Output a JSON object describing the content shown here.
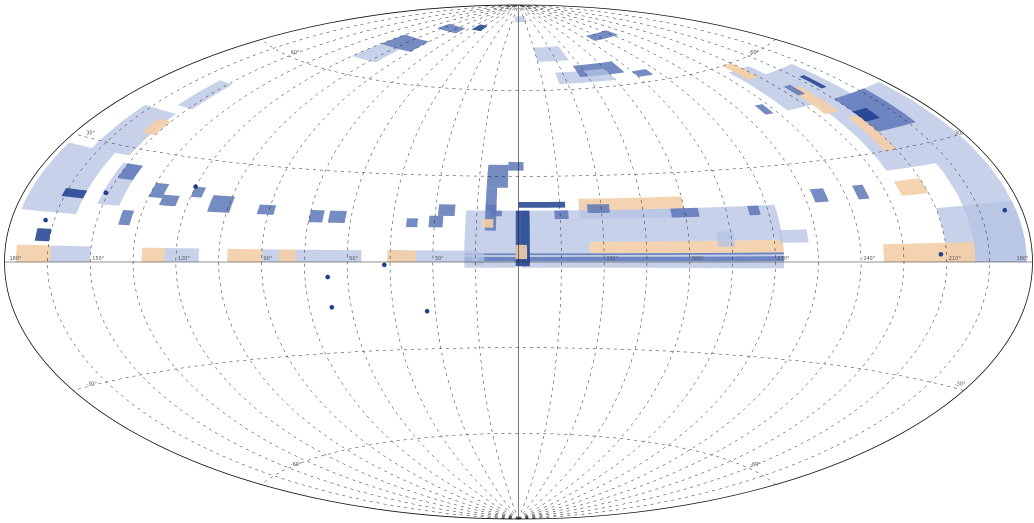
{
  "map": {
    "projection": "Aitoff",
    "colors": {
      "dark_blue": "#1c3f8e",
      "medium_blue": "#5d78b8",
      "light_blue": "#b4c3e3",
      "orange": "#f3cea7",
      "boundary": "#111111",
      "grid": "#222222",
      "background": "#ffffff"
    },
    "meridian_lon_deg": [
      -165,
      -150,
      -135,
      -120,
      -105,
      -90,
      -75,
      -60,
      -45,
      -30,
      -15,
      15,
      30,
      45,
      60,
      75,
      90,
      105,
      120,
      135,
      150,
      165
    ],
    "parallel_lat_deg": [
      -60,
      -30,
      0,
      30,
      60
    ],
    "equator_labels": [
      {
        "lon": 180,
        "text": "180°"
      },
      {
        "lon": 150,
        "text": "150°"
      },
      {
        "lon": 120,
        "text": "120°"
      },
      {
        "lon": 90,
        "text": "90°"
      },
      {
        "lon": 60,
        "text": "60°"
      },
      {
        "lon": 30,
        "text": "30°"
      },
      {
        "lon": -30,
        "text": "330°"
      },
      {
        "lon": -60,
        "text": "300°"
      },
      {
        "lon": -90,
        "text": "270°"
      },
      {
        "lon": -120,
        "text": "240°"
      },
      {
        "lon": -150,
        "text": "210°"
      },
      {
        "lon": -180,
        "text": "180°"
      }
    ],
    "parallel_labels": [
      {
        "lon": -150,
        "lat": 60,
        "text": "60°"
      },
      {
        "lon": 150,
        "lat": 60,
        "text": "60°"
      },
      {
        "lon": -175,
        "lat": 30,
        "text": "30°"
      },
      {
        "lon": 175,
        "lat": 30,
        "text": "30°"
      },
      {
        "lon": -175,
        "lat": -30,
        "text": "-30°"
      },
      {
        "lon": 175,
        "lat": -30,
        "text": "-30°"
      },
      {
        "lon": -150,
        "lat": -60,
        "text": "-60°"
      },
      {
        "lon": 150,
        "lat": -60,
        "text": "-60°"
      }
    ],
    "coverage_regions": [
      {
        "c": "orange",
        "lon": [
          -93,
          -25
        ],
        "lat": [
          3,
          7
        ]
      },
      {
        "c": "light_blue",
        "lon": [
          -93,
          -25
        ],
        "lat": [
          -2,
          3
        ]
      },
      {
        "c": "light_blue",
        "lon": [
          -93,
          -25
        ],
        "lat": [
          7,
          18
        ]
      },
      {
        "c": "light_blue",
        "lon": [
          -25,
          -1
        ],
        "lat": [
          -2,
          18
        ]
      },
      {
        "c": "light_blue",
        "lon": [
          1,
          19
        ],
        "lat": [
          -2,
          18
        ]
      },
      {
        "c": "medium_blue",
        "lon": [
          -93,
          19
        ],
        "lat": [
          0.3,
          1.8
        ]
      },
      {
        "c": "medium_blue",
        "lon": [
          -93,
          19
        ],
        "lat": [
          2.4,
          3
        ]
      },
      {
        "c": "dark_blue",
        "lon": [
          -4,
          1
        ],
        "lat": [
          -1.5,
          18
        ]
      },
      {
        "c": "orange",
        "lon": [
          -3,
          1
        ],
        "lat": [
          1,
          6
        ]
      },
      {
        "c": "dark_blue",
        "lon": [
          -17,
          0
        ],
        "lat": [
          19,
          21
        ]
      },
      {
        "c": "medium_blue",
        "lon": [
          -2,
          4
        ],
        "lat": [
          32,
          35
        ]
      },
      {
        "c": "medium_blue",
        "lon": [
          4,
          12
        ],
        "lat": [
          26,
          34
        ]
      },
      {
        "c": "medium_blue",
        "lon": [
          8,
          12
        ],
        "lat": [
          18,
          26
        ]
      },
      {
        "c": "medium_blue",
        "lon": [
          8,
          12
        ],
        "lat": [
          11,
          20
        ]
      },
      {
        "c": "medium_blue",
        "lon": [
          6,
          10
        ],
        "lat": [
          16,
          18
        ]
      },
      {
        "c": "orange",
        "lon": [
          9,
          13
        ],
        "lat": [
          12,
          15
        ]
      },
      {
        "c": "light_blue",
        "lon": [
          12,
          16
        ],
        "lat": [
          -1,
          3
        ]
      },
      {
        "c": "light_blue",
        "lon": [
          14,
          30
        ],
        "lat": [
          0,
          4
        ]
      },
      {
        "c": "light_blue",
        "lon": [
          30,
          45
        ],
        "lat": [
          0,
          4
        ]
      },
      {
        "c": "orange",
        "lon": [
          36,
          46
        ],
        "lat": [
          0,
          4
        ]
      },
      {
        "c": "light_blue",
        "lon": [
          55,
          90
        ],
        "lat": [
          0,
          4
        ]
      },
      {
        "c": "orange",
        "lon": [
          78,
          84
        ],
        "lat": [
          0,
          4
        ]
      },
      {
        "c": "orange",
        "lon": [
          90,
          102
        ],
        "lat": [
          0,
          4
        ]
      },
      {
        "c": "light_blue",
        "lon": [
          112,
          124
        ],
        "lat": [
          0,
          4
        ]
      },
      {
        "c": "orange",
        "lon": [
          124,
          132
        ],
        "lat": [
          0,
          4
        ]
      },
      {
        "c": "medium_blue",
        "lon": [
          23,
          29
        ],
        "lat": [
          16,
          20
        ]
      },
      {
        "c": "medium_blue",
        "lon": [
          27,
          32
        ],
        "lat": [
          12,
          16
        ]
      },
      {
        "c": "medium_blue",
        "lon": [
          36,
          40
        ],
        "lat": [
          12,
          15
        ]
      },
      {
        "c": "medium_blue",
        "lon": [
          62,
          68
        ],
        "lat": [
          13,
          17
        ]
      },
      {
        "c": "medium_blue",
        "lon": [
          70,
          75
        ],
        "lat": [
          13,
          17
        ]
      },
      {
        "c": "medium_blue",
        "lon": [
          88,
          94
        ],
        "lat": [
          15,
          18
        ]
      },
      {
        "c": "medium_blue",
        "lon": [
          104,
          112
        ],
        "lat": [
          15,
          20
        ]
      },
      {
        "c": "medium_blue",
        "lon": [
          116,
          120
        ],
        "lat": [
          19,
          22
        ]
      },
      {
        "c": "medium_blue",
        "lon": [
          124,
          130
        ],
        "lat": [
          16,
          19
        ]
      },
      {
        "c": "medium_blue",
        "lon": [
          138,
          142
        ],
        "lat": [
          10,
          14
        ]
      },
      {
        "c": "medium_blue",
        "lon": [
          130,
          135
        ],
        "lat": [
          18,
          22
        ]
      },
      {
        "c": "light_blue",
        "lon": [
          144,
          152
        ],
        "lat": [
          15,
          26
        ]
      },
      {
        "c": "medium_blue",
        "lon": [
          144,
          150
        ],
        "lat": [
          22,
          26
        ]
      },
      {
        "c": "light_blue",
        "lon": [
          152,
          168
        ],
        "lat": [
          28,
          40
        ]
      },
      {
        "c": "orange",
        "lon": [
          150,
          156
        ],
        "lat": [
          34,
          38
        ]
      },
      {
        "c": "light_blue",
        "lon": [
          148,
          156
        ],
        "lat": [
          42,
          50
        ]
      },
      {
        "c": "light_blue",
        "lon": [
          158,
          178
        ],
        "lat": [
          12,
          28
        ]
      },
      {
        "c": "orange",
        "lon": [
          164,
          176
        ],
        "lat": [
          0,
          4
        ]
      },
      {
        "c": "light_blue",
        "lon": [
          150,
          164
        ],
        "lat": [
          0,
          4
        ]
      },
      {
        "c": "dark_blue",
        "lon": [
          165,
          170
        ],
        "lat": [
          5,
          8
        ]
      },
      {
        "c": "dark_blue",
        "lon": [
          158,
          166
        ],
        "lat": [
          16,
          18
        ]
      },
      {
        "c": "light_blue",
        "lon": [
          -30,
          -22
        ],
        "lat": [
          18,
          21
        ]
      },
      {
        "c": "orange",
        "lon": [
          -60,
          -22
        ],
        "lat": [
          18,
          22
        ]
      },
      {
        "c": "light_blue",
        "lon": [
          -60,
          -22
        ],
        "lat": [
          15,
          18
        ]
      },
      {
        "c": "medium_blue",
        "lon": [
          -33,
          -25
        ],
        "lat": [
          17,
          20
        ]
      },
      {
        "c": "medium_blue",
        "lon": [
          -18,
          -13
        ],
        "lat": [
          15,
          18
        ]
      },
      {
        "c": "medium_blue",
        "lon": [
          -65,
          -55
        ],
        "lat": [
          15,
          18
        ]
      },
      {
        "c": "light_blue",
        "lon": [
          -76,
          -70
        ],
        "lat": [
          5,
          10
        ]
      },
      {
        "c": "medium_blue",
        "lon": [
          -87,
          -83
        ],
        "lat": [
          15,
          18
        ]
      },
      {
        "c": "medium_blue",
        "lon": [
          -113,
          -108
        ],
        "lat": [
          18,
          22
        ]
      },
      {
        "c": "light_blue",
        "lon": [
          -178,
          -160
        ],
        "lat": [
          0,
          45
        ]
      },
      {
        "c": "light_blue",
        "lon": [
          -160,
          -140
        ],
        "lat": [
          25,
          55
        ]
      },
      {
        "c": "light_blue",
        "lon": [
          -140,
          -125
        ],
        "lat": [
          45,
          58
        ]
      },
      {
        "c": "medium_blue",
        "lon": [
          -168,
          -150
        ],
        "lat": [
          35,
          45
        ]
      },
      {
        "c": "light_blue",
        "lon": [
          -178,
          -150
        ],
        "lat": [
          0,
          14
        ]
      },
      {
        "c": "orange",
        "lon": [
          -160,
          -140
        ],
        "lat": [
          0,
          5
        ]
      },
      {
        "c": "orange",
        "lon": [
          -140,
          -128
        ],
        "lat": [
          0,
          5
        ]
      },
      {
        "c": "orange",
        "lon": [
          -150,
          -145
        ],
        "lat": [
          30,
          40
        ]
      },
      {
        "c": "orange",
        "lon": [
          -150,
          -140
        ],
        "lat": [
          18,
          22
        ]
      },
      {
        "c": "orange",
        "lon": [
          -145,
          -138
        ],
        "lat": [
          42,
          50
        ]
      },
      {
        "c": "orange",
        "lon": [
          -135,
          -128
        ],
        "lat": [
          55,
          60
        ]
      },
      {
        "c": "dark_blue",
        "lon": [
          -157,
          -150
        ],
        "lat": [
          38,
          41
        ]
      },
      {
        "c": "dark_blue",
        "lon": [
          -155,
          -152
        ],
        "lat": [
          48,
          52
        ]
      },
      {
        "c": "medium_blue",
        "lon": [
          -142,
          -138
        ],
        "lat": [
          48,
          51
        ]
      },
      {
        "c": "medium_blue",
        "lon": [
          -128,
          -124
        ],
        "lat": [
          18,
          22
        ]
      },
      {
        "c": "medium_blue",
        "lon": [
          -118,
          -114
        ],
        "lat": [
          45,
          48
        ]
      },
      {
        "c": "light_blue",
        "lon": [
          -102,
          -92
        ],
        "lat": [
          6,
          10
        ]
      },
      {
        "c": "light_blue",
        "lon": [
          -40,
          -15
        ],
        "lat": [
          70,
          75
        ]
      },
      {
        "c": "light_blue",
        "lon": [
          -45,
          -25
        ],
        "lat": [
          62,
          66
        ]
      },
      {
        "c": "medium_blue",
        "lon": [
          -70,
          -40
        ],
        "lat": [
          64,
          68
        ]
      },
      {
        "c": "light_blue",
        "lon": [
          -60,
          -45
        ],
        "lat": [
          62,
          66
        ]
      },
      {
        "c": "medium_blue",
        "lon": [
          -110,
          -80
        ],
        "lat": [
          75,
          77
        ]
      },
      {
        "c": "medium_blue",
        "lon": [
          80,
          110
        ],
        "lat": [
          78,
          80
        ]
      },
      {
        "c": "dark_blue",
        "lon": [
          55,
          70
        ],
        "lat": [
          80,
          82
        ]
      },
      {
        "c": "medium_blue",
        "lon": [
          90,
          120
        ],
        "lat": [
          70,
          74
        ]
      },
      {
        "c": "light_blue",
        "lon": [
          100,
          120
        ],
        "lat": [
          65,
          70
        ]
      },
      {
        "c": "light_blue",
        "lon": [
          -20,
          10
        ],
        "lat": [
          84,
          86
        ]
      },
      {
        "c": "medium_blue",
        "lon": [
          -85,
          -75
        ],
        "lat": [
          62,
          64
        ]
      }
    ],
    "point_sources": [
      {
        "c": "dark_blue",
        "lon": 47,
        "lat": -1
      },
      {
        "c": "dark_blue",
        "lon": 67,
        "lat": -5
      },
      {
        "c": "dark_blue",
        "lon": 67,
        "lat": -15
      },
      {
        "c": "dark_blue",
        "lon": 33,
        "lat": -17
      },
      {
        "c": "dark_blue",
        "lon": 151,
        "lat": 18
      },
      {
        "c": "dark_blue",
        "lon": 120,
        "lat": 22
      },
      {
        "c": "dark_blue",
        "lon": 168,
        "lat": 10
      },
      {
        "c": "dark_blue",
        "lon": -174,
        "lat": 12
      },
      {
        "c": "dark_blue",
        "lon": -148,
        "lat": 2
      }
    ]
  }
}
